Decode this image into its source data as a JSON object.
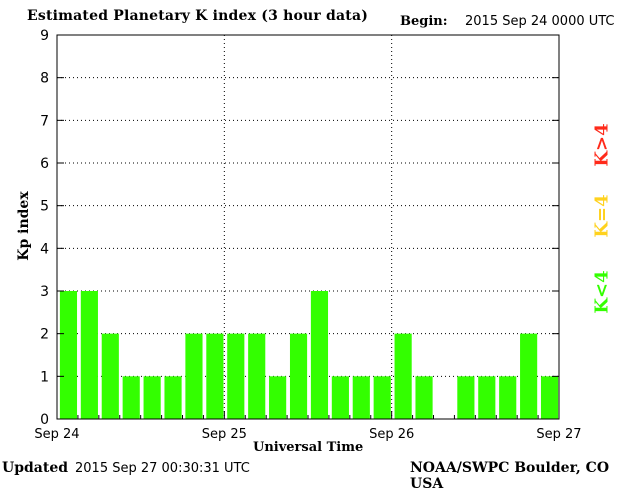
{
  "header": {
    "title": "Estimated Planetary K index (3 hour data)",
    "begin_label": "Begin:",
    "begin_value": "2015 Sep 24 0000 UTC"
  },
  "footer": {
    "updated_label": "Updated",
    "updated_value": "2015 Sep 27 00:30:31 UTC",
    "credit": "NOAA/SWPC Boulder, CO USA"
  },
  "legend": [
    {
      "label": "K>4",
      "color": "#ff2a1a"
    },
    {
      "label": "K=4",
      "color": "#ffd21e"
    },
    {
      "label": "K<4",
      "color": "#33ff00"
    }
  ],
  "chart_data": {
    "type": "bar",
    "title": "Estimated Planetary K index (3 hour data)",
    "xlabel": "Universal Time",
    "ylabel": "Kp index",
    "ylim": [
      0,
      9
    ],
    "yticks": [
      "0",
      "1",
      "2",
      "3",
      "4",
      "5",
      "6",
      "7",
      "8",
      "9"
    ],
    "xticks": [
      "Sep 24",
      "Sep 25",
      "Sep 26",
      "Sep 27"
    ],
    "grid": true,
    "bar_color": "#33ff00",
    "values": [
      3,
      3,
      2,
      1,
      1,
      1,
      2,
      2,
      2,
      2,
      1,
      2,
      3,
      1,
      1,
      1,
      2,
      1,
      0,
      1,
      1,
      1,
      2,
      1
    ]
  }
}
